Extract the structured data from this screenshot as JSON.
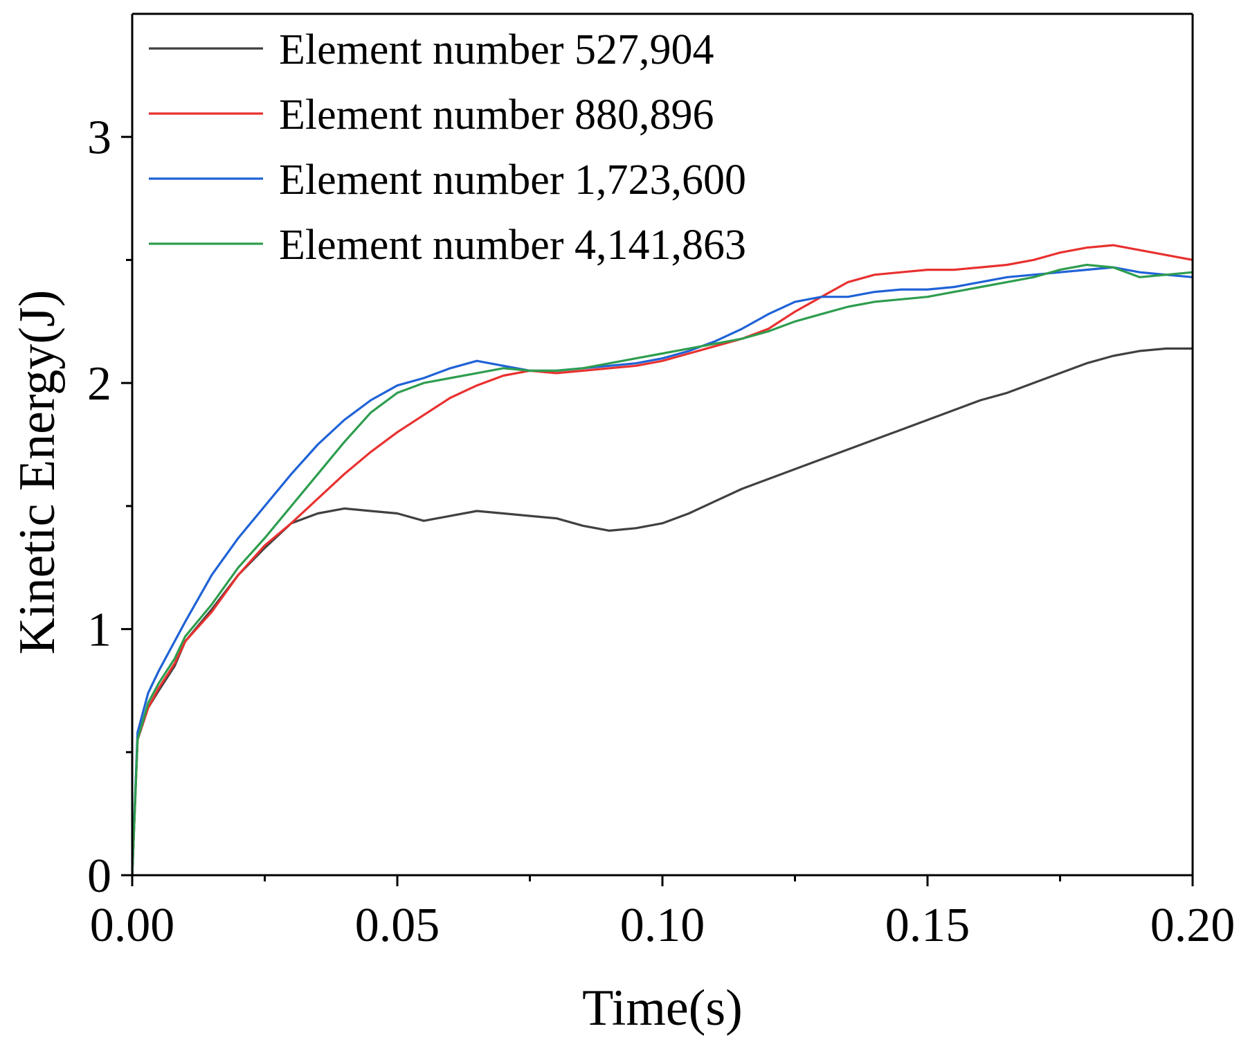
{
  "chart_data": {
    "type": "line",
    "title": "",
    "xlabel": "Time(s)",
    "ylabel": "Kinetic Energy(J)",
    "xlim": [
      0,
      0.2
    ],
    "ylim": [
      0,
      3.5
    ],
    "x_major_ticks": [
      0,
      0.05,
      0.1,
      0.15,
      0.2
    ],
    "x_tick_labels": [
      "0.00",
      "0.05",
      "0.10",
      "0.15",
      "0.20"
    ],
    "x_minor_ticks": [
      0.025,
      0.075,
      0.125,
      0.175
    ],
    "y_major_ticks": [
      0,
      1,
      2,
      3
    ],
    "y_tick_labels": [
      "0",
      "1",
      "2",
      "3"
    ],
    "y_minor_ticks": [
      0.5,
      1.5,
      2.5
    ],
    "legend_position": "top-left",
    "series": [
      {
        "name": "Element number 527,904",
        "color": "#404040",
        "x": [
          0,
          0.001,
          0.003,
          0.005,
          0.008,
          0.01,
          0.015,
          0.02,
          0.025,
          0.03,
          0.035,
          0.04,
          0.045,
          0.05,
          0.055,
          0.06,
          0.065,
          0.07,
          0.075,
          0.08,
          0.085,
          0.09,
          0.095,
          0.1,
          0.105,
          0.11,
          0.115,
          0.12,
          0.125,
          0.13,
          0.135,
          0.14,
          0.145,
          0.15,
          0.155,
          0.16,
          0.165,
          0.17,
          0.175,
          0.18,
          0.185,
          0.19,
          0.195,
          0.2
        ],
        "y": [
          0,
          0.55,
          0.68,
          0.75,
          0.85,
          0.95,
          1.08,
          1.22,
          1.33,
          1.43,
          1.47,
          1.49,
          1.48,
          1.47,
          1.44,
          1.46,
          1.48,
          1.47,
          1.46,
          1.45,
          1.42,
          1.4,
          1.41,
          1.43,
          1.47,
          1.52,
          1.57,
          1.61,
          1.65,
          1.69,
          1.73,
          1.77,
          1.81,
          1.85,
          1.89,
          1.93,
          1.96,
          2.0,
          2.04,
          2.08,
          2.11,
          2.13,
          2.14,
          2.14
        ]
      },
      {
        "name": "Element number 880,896",
        "color": "#e8312f",
        "x": [
          0,
          0.001,
          0.003,
          0.005,
          0.008,
          0.01,
          0.015,
          0.02,
          0.025,
          0.03,
          0.035,
          0.04,
          0.045,
          0.05,
          0.055,
          0.06,
          0.065,
          0.07,
          0.075,
          0.08,
          0.085,
          0.09,
          0.095,
          0.1,
          0.105,
          0.11,
          0.115,
          0.12,
          0.125,
          0.13,
          0.135,
          0.14,
          0.145,
          0.15,
          0.155,
          0.16,
          0.165,
          0.17,
          0.175,
          0.18,
          0.185,
          0.19,
          0.195,
          0.2
        ],
        "y": [
          0,
          0.55,
          0.68,
          0.76,
          0.86,
          0.95,
          1.07,
          1.22,
          1.34,
          1.43,
          1.53,
          1.63,
          1.72,
          1.8,
          1.87,
          1.94,
          1.99,
          2.03,
          2.05,
          2.04,
          2.05,
          2.06,
          2.07,
          2.09,
          2.12,
          2.15,
          2.18,
          2.22,
          2.29,
          2.35,
          2.41,
          2.44,
          2.45,
          2.46,
          2.46,
          2.47,
          2.48,
          2.5,
          2.53,
          2.55,
          2.56,
          2.54,
          2.52,
          2.5
        ]
      },
      {
        "name": "Element number 1,723,600",
        "color": "#1f62d6",
        "x": [
          0,
          0.001,
          0.003,
          0.005,
          0.008,
          0.01,
          0.015,
          0.02,
          0.025,
          0.03,
          0.035,
          0.04,
          0.045,
          0.05,
          0.055,
          0.06,
          0.065,
          0.07,
          0.075,
          0.08,
          0.085,
          0.09,
          0.095,
          0.1,
          0.105,
          0.11,
          0.115,
          0.12,
          0.125,
          0.13,
          0.135,
          0.14,
          0.145,
          0.15,
          0.155,
          0.16,
          0.165,
          0.17,
          0.175,
          0.18,
          0.185,
          0.19,
          0.195,
          0.2
        ],
        "y": [
          0,
          0.58,
          0.74,
          0.83,
          0.95,
          1.03,
          1.22,
          1.37,
          1.5,
          1.63,
          1.75,
          1.85,
          1.93,
          1.99,
          2.02,
          2.06,
          2.09,
          2.07,
          2.05,
          2.05,
          2.06,
          2.07,
          2.08,
          2.1,
          2.13,
          2.17,
          2.22,
          2.28,
          2.33,
          2.35,
          2.35,
          2.37,
          2.38,
          2.38,
          2.39,
          2.41,
          2.43,
          2.44,
          2.45,
          2.46,
          2.47,
          2.45,
          2.44,
          2.43
        ]
      },
      {
        "name": "Element number 4,141,863",
        "color": "#2e9d4e",
        "x": [
          0,
          0.001,
          0.003,
          0.005,
          0.008,
          0.01,
          0.015,
          0.02,
          0.025,
          0.03,
          0.035,
          0.04,
          0.045,
          0.05,
          0.055,
          0.06,
          0.065,
          0.07,
          0.075,
          0.08,
          0.085,
          0.09,
          0.095,
          0.1,
          0.105,
          0.11,
          0.115,
          0.12,
          0.125,
          0.13,
          0.135,
          0.14,
          0.145,
          0.15,
          0.155,
          0.16,
          0.165,
          0.17,
          0.175,
          0.18,
          0.185,
          0.19,
          0.195,
          0.2
        ],
        "y": [
          0,
          0.55,
          0.7,
          0.78,
          0.88,
          0.97,
          1.1,
          1.25,
          1.37,
          1.5,
          1.63,
          1.76,
          1.88,
          1.96,
          2.0,
          2.02,
          2.04,
          2.06,
          2.05,
          2.05,
          2.06,
          2.08,
          2.1,
          2.12,
          2.14,
          2.16,
          2.18,
          2.21,
          2.25,
          2.28,
          2.31,
          2.33,
          2.34,
          2.35,
          2.37,
          2.39,
          2.41,
          2.43,
          2.46,
          2.48,
          2.47,
          2.43,
          2.44,
          2.45
        ]
      }
    ]
  }
}
